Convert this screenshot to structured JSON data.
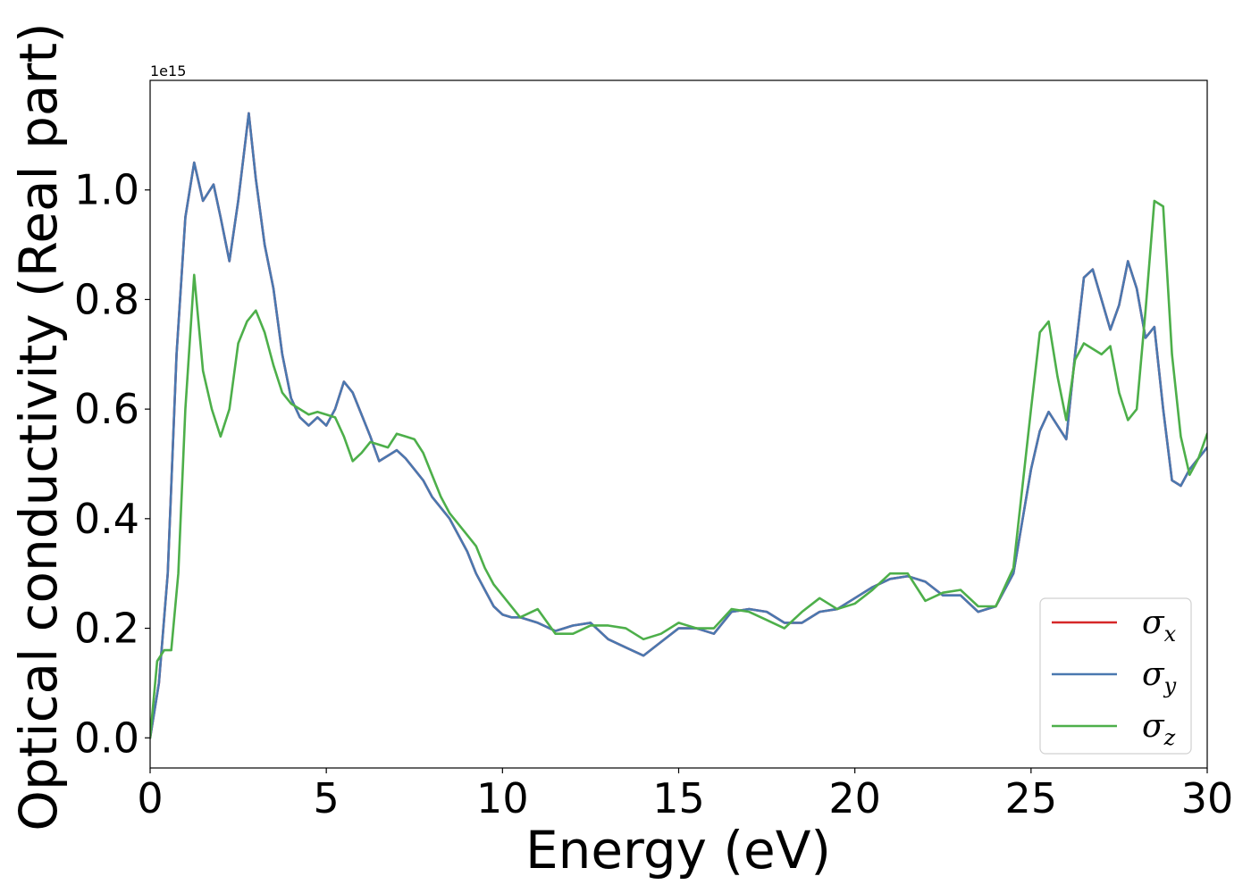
{
  "chart_data": {
    "type": "line",
    "xlabel": "Energy (eV)",
    "ylabel": "Optical conductivity (Real part)",
    "y_offset_label": "1e15",
    "xlim": [
      0,
      30
    ],
    "ylim": [
      -0.055,
      1.2
    ],
    "x_ticks": [
      0,
      5,
      10,
      15,
      20,
      25,
      30
    ],
    "x_tick_labels": [
      "0",
      "5",
      "10",
      "15",
      "20",
      "25",
      "30"
    ],
    "y_ticks": [
      0.0,
      0.2,
      0.4,
      0.6,
      0.8,
      1.0
    ],
    "y_tick_labels": [
      "0.0",
      "0.2",
      "0.4",
      "0.6",
      "0.8",
      "1.0"
    ],
    "grid": false,
    "legend_position": "bottom-right",
    "series": [
      {
        "name": "σx",
        "symbol": "σ",
        "subscript": "x",
        "color": "#d62728",
        "x": [
          0,
          0.25,
          0.5,
          0.75,
          1.0,
          1.25,
          1.5,
          1.8,
          2.0,
          2.25,
          2.5,
          2.8,
          3.0,
          3.25,
          3.5,
          3.75,
          4.0,
          4.25,
          4.5,
          4.75,
          5.0,
          5.25,
          5.5,
          5.75,
          6.0,
          6.25,
          6.5,
          6.75,
          7.0,
          7.25,
          7.5,
          7.75,
          8.0,
          8.25,
          8.5,
          8.75,
          9.0,
          9.25,
          9.5,
          9.75,
          10.0,
          10.25,
          10.5,
          11.0,
          11.5,
          12.0,
          12.5,
          13.0,
          13.5,
          14.0,
          14.5,
          15.0,
          15.5,
          16.0,
          16.5,
          17.0,
          17.5,
          18.0,
          18.5,
          19.0,
          19.5,
          20.0,
          20.5,
          21.0,
          21.5,
          22.0,
          22.5,
          23.0,
          23.5,
          24.0,
          24.5,
          25.0,
          25.25,
          25.5,
          25.75,
          26.0,
          26.25,
          26.5,
          26.75,
          27.0,
          27.25,
          27.5,
          27.75,
          28.0,
          28.25,
          28.5,
          28.75,
          29.0,
          29.25,
          29.5,
          29.75,
          30.0
        ],
        "y": [
          0.0,
          0.1,
          0.3,
          0.7,
          0.95,
          1.05,
          0.98,
          1.01,
          0.95,
          0.87,
          0.98,
          1.14,
          1.02,
          0.9,
          0.82,
          0.7,
          0.62,
          0.585,
          0.57,
          0.585,
          0.57,
          0.6,
          0.65,
          0.63,
          0.59,
          0.55,
          0.505,
          0.515,
          0.525,
          0.51,
          0.49,
          0.47,
          0.44,
          0.42,
          0.4,
          0.37,
          0.34,
          0.3,
          0.27,
          0.24,
          0.225,
          0.22,
          0.22,
          0.21,
          0.195,
          0.205,
          0.21,
          0.18,
          0.165,
          0.15,
          0.175,
          0.2,
          0.2,
          0.19,
          0.23,
          0.235,
          0.23,
          0.21,
          0.21,
          0.23,
          0.235,
          0.255,
          0.275,
          0.29,
          0.295,
          0.285,
          0.26,
          0.26,
          0.23,
          0.24,
          0.3,
          0.49,
          0.56,
          0.595,
          0.57,
          0.545,
          0.7,
          0.84,
          0.855,
          0.8,
          0.745,
          0.79,
          0.87,
          0.82,
          0.73,
          0.75,
          0.6,
          0.47,
          0.46,
          0.49,
          0.51,
          0.53
        ]
      },
      {
        "name": "σy",
        "symbol": "σ",
        "subscript": "y",
        "color": "#4a78b0",
        "x": [
          0,
          0.25,
          0.5,
          0.75,
          1.0,
          1.25,
          1.5,
          1.8,
          2.0,
          2.25,
          2.5,
          2.8,
          3.0,
          3.25,
          3.5,
          3.75,
          4.0,
          4.25,
          4.5,
          4.75,
          5.0,
          5.25,
          5.5,
          5.75,
          6.0,
          6.25,
          6.5,
          6.75,
          7.0,
          7.25,
          7.5,
          7.75,
          8.0,
          8.25,
          8.5,
          8.75,
          9.0,
          9.25,
          9.5,
          9.75,
          10.0,
          10.25,
          10.5,
          11.0,
          11.5,
          12.0,
          12.5,
          13.0,
          13.5,
          14.0,
          14.5,
          15.0,
          15.5,
          16.0,
          16.5,
          17.0,
          17.5,
          18.0,
          18.5,
          19.0,
          19.5,
          20.0,
          20.5,
          21.0,
          21.5,
          22.0,
          22.5,
          23.0,
          23.5,
          24.0,
          24.5,
          25.0,
          25.25,
          25.5,
          25.75,
          26.0,
          26.25,
          26.5,
          26.75,
          27.0,
          27.25,
          27.5,
          27.75,
          28.0,
          28.25,
          28.5,
          28.75,
          29.0,
          29.25,
          29.5,
          29.75,
          30.0
        ],
        "y": [
          0.0,
          0.1,
          0.3,
          0.7,
          0.95,
          1.05,
          0.98,
          1.01,
          0.95,
          0.87,
          0.98,
          1.14,
          1.02,
          0.9,
          0.82,
          0.7,
          0.62,
          0.585,
          0.57,
          0.585,
          0.57,
          0.6,
          0.65,
          0.63,
          0.59,
          0.55,
          0.505,
          0.515,
          0.525,
          0.51,
          0.49,
          0.47,
          0.44,
          0.42,
          0.4,
          0.37,
          0.34,
          0.3,
          0.27,
          0.24,
          0.225,
          0.22,
          0.22,
          0.21,
          0.195,
          0.205,
          0.21,
          0.18,
          0.165,
          0.15,
          0.175,
          0.2,
          0.2,
          0.19,
          0.23,
          0.235,
          0.23,
          0.21,
          0.21,
          0.23,
          0.235,
          0.255,
          0.275,
          0.29,
          0.295,
          0.285,
          0.26,
          0.26,
          0.23,
          0.24,
          0.3,
          0.49,
          0.56,
          0.595,
          0.57,
          0.545,
          0.7,
          0.84,
          0.855,
          0.8,
          0.745,
          0.79,
          0.87,
          0.82,
          0.73,
          0.75,
          0.6,
          0.47,
          0.46,
          0.49,
          0.51,
          0.53
        ]
      },
      {
        "name": "σz",
        "symbol": "σ",
        "subscript": "z",
        "color": "#4daf4a",
        "x": [
          0,
          0.2,
          0.4,
          0.6,
          0.8,
          1.0,
          1.25,
          1.5,
          1.75,
          2.0,
          2.25,
          2.5,
          2.75,
          3.0,
          3.25,
          3.5,
          3.75,
          4.0,
          4.25,
          4.5,
          4.75,
          5.0,
          5.25,
          5.5,
          5.75,
          6.0,
          6.25,
          6.5,
          6.75,
          7.0,
          7.25,
          7.5,
          7.75,
          8.0,
          8.25,
          8.5,
          8.75,
          9.0,
          9.25,
          9.5,
          9.75,
          10.0,
          10.5,
          11.0,
          11.5,
          12.0,
          12.5,
          13.0,
          13.5,
          14.0,
          14.5,
          15.0,
          15.5,
          16.0,
          16.5,
          17.0,
          17.5,
          18.0,
          18.5,
          19.0,
          19.5,
          20.0,
          20.5,
          21.0,
          21.5,
          22.0,
          22.5,
          23.0,
          23.5,
          24.0,
          24.5,
          25.0,
          25.25,
          25.5,
          25.75,
          26.0,
          26.25,
          26.5,
          26.75,
          27.0,
          27.25,
          27.5,
          27.75,
          28.0,
          28.25,
          28.5,
          28.75,
          29.0,
          29.25,
          29.5,
          29.75,
          30.0
        ],
        "y": [
          0.0,
          0.14,
          0.16,
          0.16,
          0.3,
          0.6,
          0.845,
          0.67,
          0.6,
          0.55,
          0.6,
          0.72,
          0.76,
          0.78,
          0.74,
          0.68,
          0.63,
          0.61,
          0.6,
          0.59,
          0.595,
          0.59,
          0.585,
          0.55,
          0.505,
          0.52,
          0.54,
          0.535,
          0.53,
          0.555,
          0.55,
          0.545,
          0.52,
          0.48,
          0.44,
          0.41,
          0.39,
          0.37,
          0.35,
          0.31,
          0.28,
          0.26,
          0.22,
          0.235,
          0.19,
          0.19,
          0.205,
          0.205,
          0.2,
          0.18,
          0.19,
          0.21,
          0.2,
          0.2,
          0.235,
          0.23,
          0.215,
          0.2,
          0.23,
          0.255,
          0.235,
          0.245,
          0.27,
          0.3,
          0.3,
          0.25,
          0.265,
          0.27,
          0.24,
          0.24,
          0.31,
          0.6,
          0.74,
          0.76,
          0.66,
          0.58,
          0.69,
          0.72,
          0.71,
          0.7,
          0.715,
          0.63,
          0.58,
          0.6,
          0.78,
          0.98,
          0.97,
          0.7,
          0.55,
          0.48,
          0.51,
          0.555
        ]
      }
    ]
  }
}
